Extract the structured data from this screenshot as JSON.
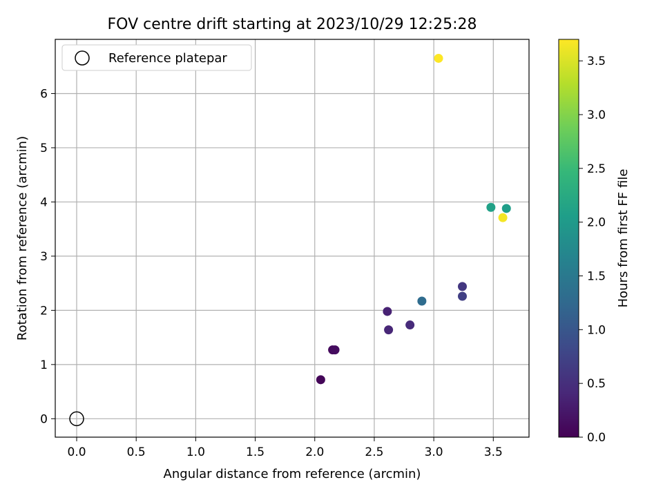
{
  "chart_data": {
    "type": "scatter",
    "title": "FOV centre drift starting at 2023/10/29 12:25:28",
    "xlabel": "Angular distance from reference (arcmin)",
    "ylabel": "Rotation from reference (arcmin)",
    "xlim": [
      -0.18,
      3.8
    ],
    "ylim": [
      -0.34,
      7.0
    ],
    "xticks": [
      "0.0",
      "0.5",
      "1.0",
      "1.5",
      "2.0",
      "2.5",
      "3.0",
      "3.5"
    ],
    "xtick_values": [
      0.0,
      0.5,
      1.0,
      1.5,
      2.0,
      2.5,
      3.0,
      3.5
    ],
    "yticks": [
      "0",
      "1",
      "2",
      "3",
      "4",
      "5",
      "6"
    ],
    "ytick_values": [
      0,
      1,
      2,
      3,
      4,
      5,
      6
    ],
    "grid": true,
    "legend_position": "top-left",
    "legend": [
      {
        "label": "Reference platepar",
        "marker": "open-circle"
      }
    ],
    "reference_point": {
      "x": 0.0,
      "y": 0.0
    },
    "points": [
      {
        "x": 2.05,
        "y": 0.72,
        "hours": 0.05
      },
      {
        "x": 2.15,
        "y": 1.27,
        "hours": 0.1
      },
      {
        "x": 2.17,
        "y": 1.27,
        "hours": 0.12
      },
      {
        "x": 2.61,
        "y": 1.98,
        "hours": 0.35
      },
      {
        "x": 2.62,
        "y": 1.64,
        "hours": 0.4
      },
      {
        "x": 2.8,
        "y": 1.73,
        "hours": 0.45
      },
      {
        "x": 3.24,
        "y": 2.44,
        "hours": 0.6
      },
      {
        "x": 3.24,
        "y": 2.26,
        "hours": 0.7
      },
      {
        "x": 2.9,
        "y": 2.17,
        "hours": 1.3
      },
      {
        "x": 3.48,
        "y": 3.9,
        "hours": 2.1
      },
      {
        "x": 3.61,
        "y": 3.88,
        "hours": 2.05
      },
      {
        "x": 3.58,
        "y": 3.71,
        "hours": 3.65
      },
      {
        "x": 3.04,
        "y": 6.65,
        "hours": 3.7
      }
    ],
    "colorbar": {
      "label": "Hours from first FF file",
      "colormap": "viridis",
      "range": [
        0.0,
        3.7
      ],
      "ticks": [
        "0.0",
        "0.5",
        "1.0",
        "1.5",
        "2.0",
        "2.5",
        "3.0",
        "3.5"
      ],
      "tick_values": [
        0.0,
        0.5,
        1.0,
        1.5,
        2.0,
        2.5,
        3.0,
        3.5
      ]
    },
    "colors": {
      "grid": "#b0b0b0",
      "axis": "#000000",
      "viridis_stops": [
        "#440154",
        "#482878",
        "#3e4989",
        "#31688e",
        "#26828e",
        "#1f9e89",
        "#35b779",
        "#6ece58",
        "#b5de2b",
        "#fde725"
      ]
    }
  }
}
